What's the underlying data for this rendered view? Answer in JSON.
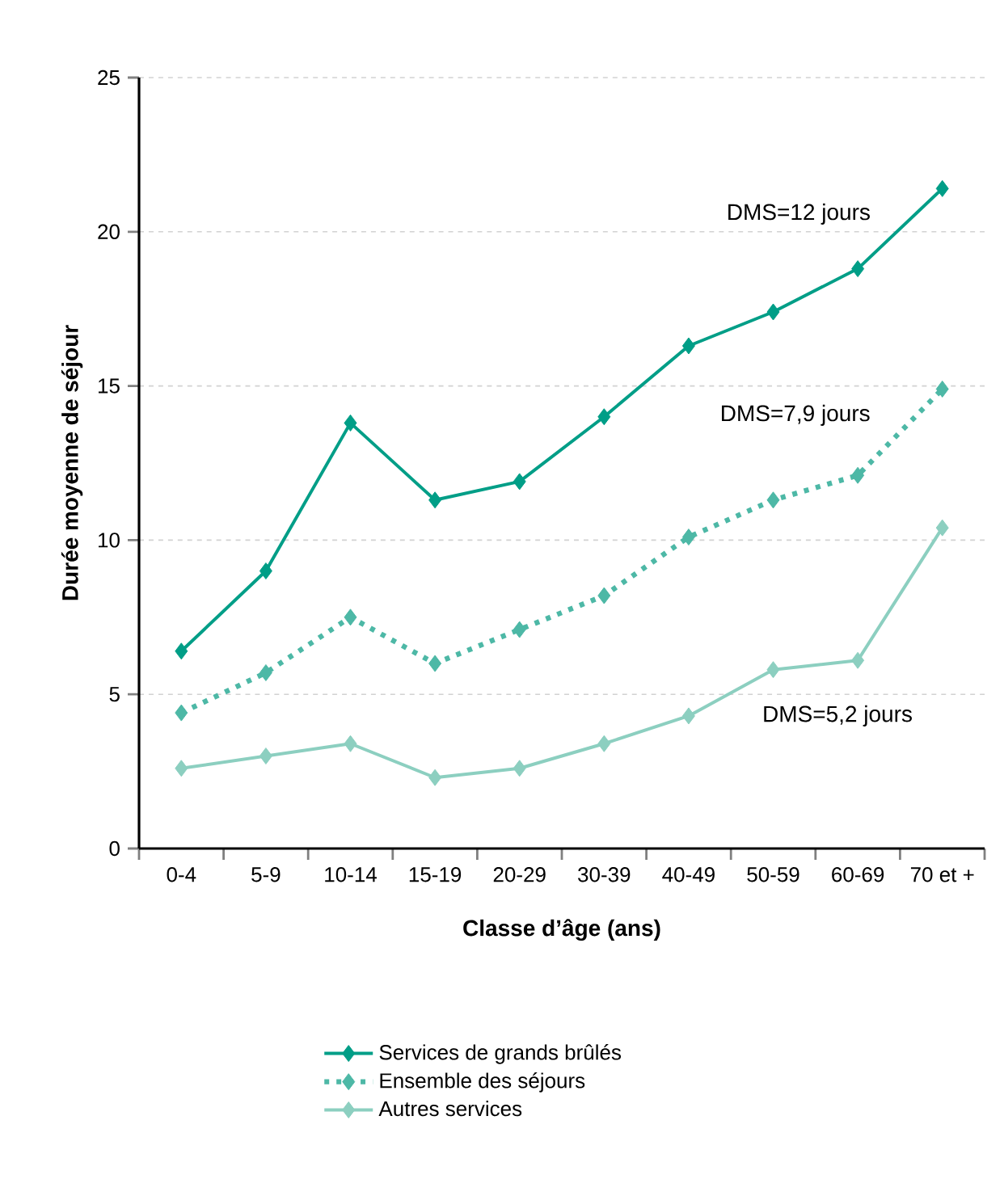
{
  "chart_data": {
    "type": "line",
    "xlabel": "Classe d’âge (ans)",
    "ylabel": "Durée moyenne de séjour",
    "categories": [
      "0-4",
      "5-9",
      "10-14",
      "15-19",
      "20-29",
      "30-39",
      "40-49",
      "50-59",
      "60-69",
      "70 et +"
    ],
    "series": [
      {
        "name": "Services de grands brûlés",
        "color": "#009e87",
        "line_style": "solid",
        "values": [
          6.4,
          9.0,
          13.8,
          11.3,
          11.9,
          14.0,
          16.3,
          17.4,
          18.8,
          21.4
        ]
      },
      {
        "name": "Ensemble des séjours",
        "color": "#4db8a6",
        "line_style": "dotted",
        "values": [
          4.4,
          5.7,
          7.5,
          6.0,
          7.1,
          8.2,
          10.1,
          11.3,
          12.1,
          14.9
        ]
      },
      {
        "name": "Autres services",
        "color": "#8ccfc0",
        "line_style": "solid",
        "values": [
          2.6,
          3.0,
          3.4,
          2.3,
          2.6,
          3.4,
          4.3,
          5.8,
          6.1,
          10.4
        ]
      }
    ],
    "annotations": [
      "DMS=12 jours",
      "DMS=7,9 jours",
      "DMS=5,2 jours"
    ],
    "ylim": [
      0,
      25
    ],
    "yticks": [
      0,
      5,
      10,
      15,
      20,
      25
    ],
    "grid": "y",
    "legend": "bottom",
    "marker": "diamond"
  }
}
